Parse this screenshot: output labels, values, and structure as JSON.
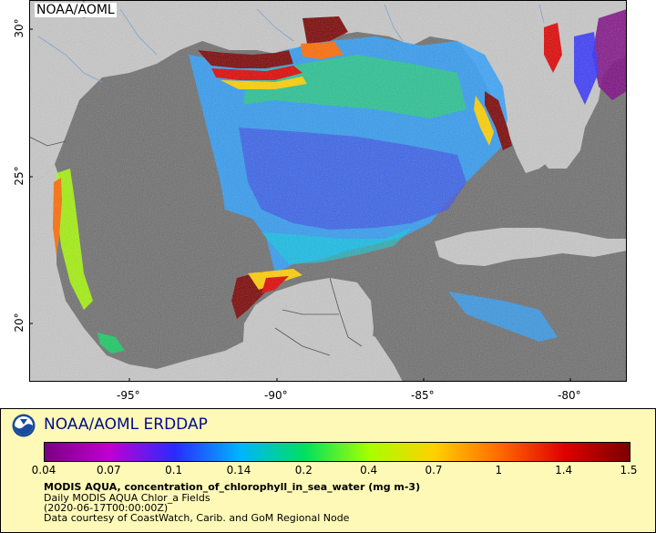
{
  "map": {
    "corner_label": "NOAA/AOML",
    "x_ticks": [
      "-95°",
      "-90°",
      "-85°",
      "-80°"
    ],
    "y_ticks": [
      "30°",
      "25°",
      "20°"
    ],
    "colors": {
      "ocean_nodata": "#6e6e6e",
      "land": "#c8c8c8",
      "rivers": "#7fa3d1",
      "borders": "#888888"
    }
  },
  "legend": {
    "title": "NOAA/AOML ERDDAP",
    "colorbar_labels": [
      "0.04",
      "0.07",
      "0.1",
      "0.14",
      "0.2",
      "0.4",
      "0.7",
      "1",
      "1.4",
      "1.5"
    ],
    "colorbar_stops": [
      "#7a0082",
      "#c000d0",
      "#2a2aff",
      "#00b4ff",
      "#00e060",
      "#a8ff00",
      "#ffd000",
      "#ff6a00",
      "#e00000",
      "#7a0000"
    ],
    "variable": "MODIS AQUA, concentration_of_chlorophyll_in_sea_water (mg m-3)",
    "line2": "Daily MODIS AQUA Chlor_a Fields",
    "line3": "(2020-06-17T00:00:00Z)",
    "line4": "Data courtesy of CoastWatch, Carib. and GoM Regional Node"
  }
}
